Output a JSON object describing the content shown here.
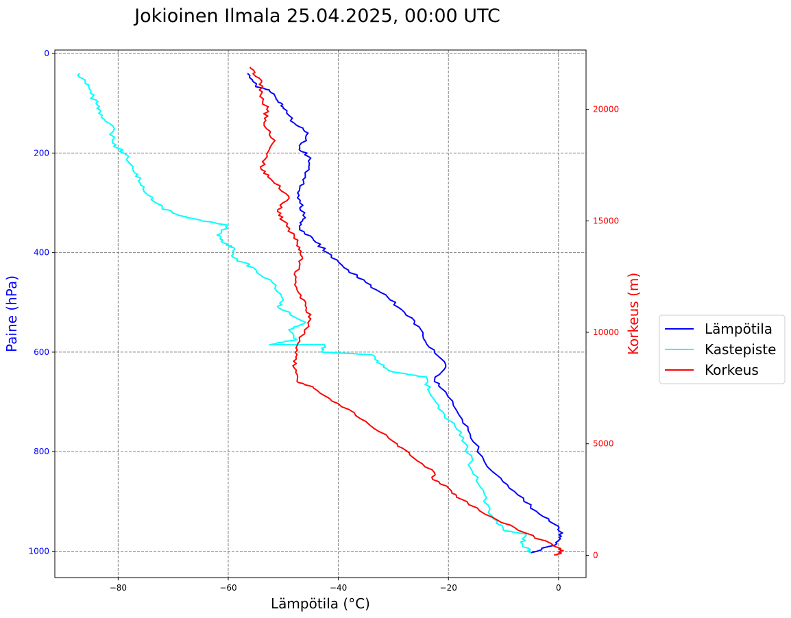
{
  "chart_data": {
    "type": "line",
    "title": "Jokioinen Ilmala 25.04.2025, 00:00 UTC",
    "xlabel": "Lämpötila (°C)",
    "ylabel": "Paine (hPa)",
    "y2label": "Korkeus (m)",
    "xlim": [
      -91.5,
      5
    ],
    "ylim": [
      1053,
      -7
    ],
    "y2lim": [
      -1000,
      22660
    ],
    "x_ticks": [
      -80,
      -60,
      -40,
      -20,
      0
    ],
    "y_ticks": [
      0,
      200,
      400,
      600,
      800,
      1000
    ],
    "y2_ticks": [
      0,
      5000,
      10000,
      15000,
      20000
    ],
    "x_tick_labels": [
      "−80",
      "−60",
      "−40",
      "−20",
      "0"
    ],
    "y_tick_labels": [
      "0",
      "200",
      "400",
      "600",
      "800",
      "1000"
    ],
    "y2_tick_labels": [
      "0",
      "5000",
      "10000",
      "15000",
      "20000"
    ],
    "grid": true,
    "legend_position": "outside-right",
    "colors": {
      "temperature": "#0000ff",
      "dewpoint": "#00ffff",
      "height": "#ff0000",
      "left_axis": "#0000ff",
      "right_axis": "#ff0000",
      "grid": "#808080"
    },
    "series": [
      {
        "name": "Lämpötila",
        "axis": "pressure",
        "points": [
          [
            -5.0,
            1003
          ],
          [
            -0.3,
            985
          ],
          [
            0.5,
            970
          ],
          [
            0.0,
            950
          ],
          [
            -4.0,
            920
          ],
          [
            -8.0,
            880
          ],
          [
            -12.0,
            840
          ],
          [
            -15.5,
            780
          ],
          [
            -17.5,
            735
          ],
          [
            -20.5,
            680
          ],
          [
            -22.5,
            655
          ],
          [
            -20.5,
            625
          ],
          [
            -23.5,
            590
          ],
          [
            -25.0,
            555
          ],
          [
            -28.0,
            520
          ],
          [
            -31.0,
            490
          ],
          [
            -35.0,
            460
          ],
          [
            -39.0,
            430
          ],
          [
            -42.0,
            400
          ],
          [
            -44.5,
            375
          ],
          [
            -47.0,
            350
          ],
          [
            -46.0,
            330
          ],
          [
            -47.0,
            300
          ],
          [
            -47.0,
            270
          ],
          [
            -46.0,
            245
          ],
          [
            -45.0,
            210
          ],
          [
            -47.0,
            190
          ],
          [
            -45.5,
            160
          ],
          [
            -48.0,
            140
          ],
          [
            -50.0,
            110
          ],
          [
            -51.0,
            95
          ],
          [
            -52.5,
            75
          ],
          [
            -55.0,
            65
          ],
          [
            -56.5,
            40
          ]
        ]
      },
      {
        "name": "Kastepiste",
        "axis": "pressure",
        "points": [
          [
            -5.0,
            1003
          ],
          [
            -6.5,
            985
          ],
          [
            -6.0,
            965
          ],
          [
            -10.0,
            958
          ],
          [
            -12.0,
            930
          ],
          [
            -13.5,
            885
          ],
          [
            -15.5,
            845
          ],
          [
            -16.5,
            790
          ],
          [
            -18.5,
            755
          ],
          [
            -21.0,
            720
          ],
          [
            -23.5,
            680
          ],
          [
            -24.0,
            650
          ],
          [
            -30.0,
            640
          ],
          [
            -33.0,
            620
          ],
          [
            -34.0,
            605
          ],
          [
            -43.0,
            600
          ],
          [
            -42.5,
            585
          ],
          [
            -52.5,
            585
          ],
          [
            -47.5,
            575
          ],
          [
            -49.0,
            555
          ],
          [
            -46.0,
            540
          ],
          [
            -51.0,
            510
          ],
          [
            -50.0,
            495
          ],
          [
            -52.0,
            460
          ],
          [
            -55.5,
            430
          ],
          [
            -59.0,
            410
          ],
          [
            -59.0,
            390
          ],
          [
            -61.0,
            380
          ],
          [
            -62.0,
            365
          ],
          [
            -60.0,
            345
          ],
          [
            -65.0,
            335
          ],
          [
            -69.0,
            325
          ],
          [
            -72.0,
            310
          ],
          [
            -74.5,
            285
          ],
          [
            -76.0,
            260
          ],
          [
            -77.0,
            240
          ],
          [
            -79.0,
            200
          ],
          [
            -81.0,
            180
          ],
          [
            -81.0,
            145
          ],
          [
            -83.5,
            120
          ],
          [
            -84.0,
            100
          ],
          [
            -85.0,
            80
          ],
          [
            -86.0,
            60
          ],
          [
            -87.0,
            40
          ]
        ]
      },
      {
        "name": "Korkeus",
        "axis": "height",
        "points": [
          [
            -0.8,
            0
          ],
          [
            0.5,
            100
          ],
          [
            0.4,
            300
          ],
          [
            -6.0,
            1000
          ],
          [
            -12.0,
            1700
          ],
          [
            -18.0,
            2550
          ],
          [
            -19.5,
            2900
          ],
          [
            -23.0,
            3500
          ],
          [
            -22.5,
            3700
          ],
          [
            -27.0,
            4500
          ],
          [
            -30.0,
            5100
          ],
          [
            -35.0,
            6000
          ],
          [
            -40.0,
            6800
          ],
          [
            -44.5,
            7500
          ],
          [
            -47.5,
            7800
          ],
          [
            -48.0,
            8400
          ],
          [
            -47.5,
            9000
          ],
          [
            -47.0,
            9600
          ],
          [
            -45.0,
            10600
          ],
          [
            -46.0,
            11200
          ],
          [
            -47.5,
            11900
          ],
          [
            -48.0,
            12600
          ],
          [
            -46.5,
            13300
          ],
          [
            -47.0,
            13800
          ],
          [
            -48.0,
            14300
          ],
          [
            -50.0,
            15000
          ],
          [
            -51.0,
            15500
          ],
          [
            -49.0,
            16100
          ],
          [
            -52.0,
            16800
          ],
          [
            -54.0,
            17300
          ],
          [
            -53.0,
            18000
          ],
          [
            -51.5,
            18600
          ],
          [
            -53.5,
            19400
          ],
          [
            -53.0,
            20000
          ],
          [
            -54.0,
            20700
          ],
          [
            -54.0,
            21200
          ],
          [
            -55.5,
            21600
          ],
          [
            -56.0,
            21900
          ]
        ]
      }
    ]
  }
}
